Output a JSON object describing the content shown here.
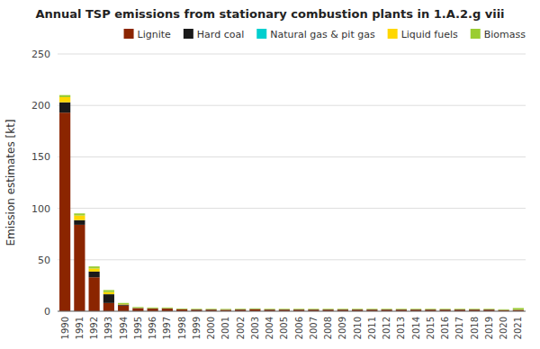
{
  "chart_data": {
    "type": "bar",
    "stacked": true,
    "title": "Annual TSP emissions from stationary combustion plants in 1.A.2.g viii",
    "y_label": "Emission estimates [kt]",
    "categories": [
      "1990",
      "1991",
      "1992",
      "1993",
      "1994",
      "1995",
      "1996",
      "1997",
      "1998",
      "1999",
      "2000",
      "2001",
      "2002",
      "2003",
      "2004",
      "2005",
      "2006",
      "2007",
      "2008",
      "2009",
      "2010",
      "2011",
      "2012",
      "2013",
      "2014",
      "2015",
      "2016",
      "2017",
      "2018",
      "2019",
      "2020",
      "2021"
    ],
    "series": [
      {
        "name": "Lignite",
        "color": "#8B2500",
        "values": [
          193.0,
          84.0,
          33.0,
          8.0,
          5.5,
          2.8,
          2.5,
          2.5,
          1.8,
          1.5,
          1.5,
          1.3,
          1.5,
          1.8,
          1.5,
          1.5,
          1.5,
          1.5,
          1.5,
          1.5,
          1.5,
          1.5,
          1.5,
          1.5,
          1.5,
          1.5,
          1.5,
          1.5,
          1.5,
          1.5,
          1.0,
          1.2
        ]
      },
      {
        "name": "Hard coal",
        "color": "#1a1a1a",
        "values": [
          10.0,
          4.5,
          5.5,
          8.5,
          1.0,
          0.3,
          0.2,
          0.2,
          0.2,
          0.2,
          0.2,
          0.2,
          0.3,
          0.3,
          0.2,
          0.2,
          0.2,
          0.2,
          0.2,
          0.2,
          0.2,
          0.2,
          0.2,
          0.2,
          0.2,
          0.2,
          0.2,
          0.2,
          0.2,
          0.2,
          0.2,
          0.2
        ]
      },
      {
        "name": "Natural gas & pit gas",
        "color": "#00CFCF",
        "values": [
          0.05,
          0.05,
          0.05,
          0.05,
          0.05,
          0.05,
          0.05,
          0.05,
          0.05,
          0.05,
          0.05,
          0.05,
          0.05,
          0.05,
          0.05,
          0.05,
          0.05,
          0.05,
          0.05,
          0.05,
          0.05,
          0.05,
          0.05,
          0.05,
          0.05,
          0.05,
          0.05,
          0.05,
          0.05,
          0.05,
          0.05,
          0.05
        ]
      },
      {
        "name": "Liquid fuels",
        "color": "#FFD700",
        "values": [
          5.0,
          4.5,
          3.0,
          2.0,
          0.5,
          0.2,
          0.2,
          0.2,
          0.15,
          0.15,
          0.15,
          0.15,
          0.15,
          0.15,
          0.15,
          0.15,
          0.15,
          0.15,
          0.15,
          0.15,
          0.15,
          0.15,
          0.15,
          0.15,
          0.15,
          0.15,
          0.15,
          0.15,
          0.15,
          0.15,
          0.15,
          0.15
        ]
      },
      {
        "name": "Biomass",
        "color": "#9ACD32",
        "values": [
          2.0,
          2.0,
          2.0,
          2.0,
          1.0,
          0.7,
          0.7,
          0.7,
          0.5,
          0.5,
          0.5,
          0.5,
          0.5,
          0.5,
          0.5,
          0.5,
          0.5,
          0.5,
          0.5,
          0.5,
          0.5,
          0.5,
          0.5,
          0.5,
          0.5,
          0.5,
          0.5,
          0.5,
          0.5,
          0.5,
          0.5,
          1.5
        ]
      }
    ],
    "ylim": [
      0,
      250
    ],
    "yticks": [
      0,
      50,
      100,
      150,
      200,
      250
    ],
    "grid": true,
    "legend": "upper right"
  }
}
